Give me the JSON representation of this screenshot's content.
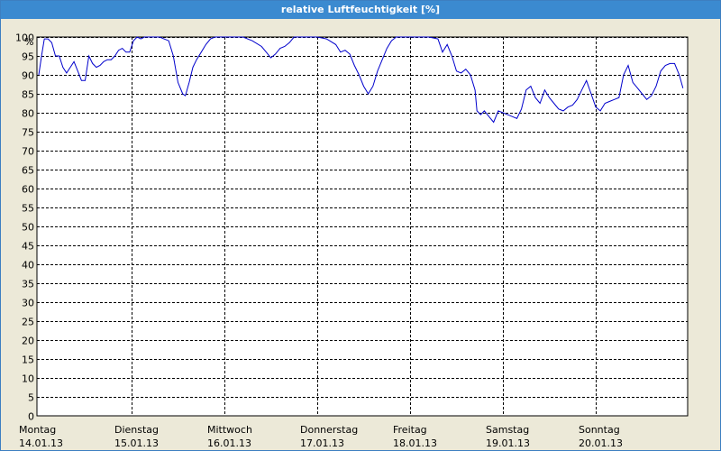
{
  "window": {
    "title": "relative Luftfeuchtigkeit [%]"
  },
  "chart_data": {
    "type": "line",
    "title": "relative Luftfeuchtigkeit [%]",
    "ylabel": "%",
    "xlabel": "",
    "ylim": [
      0,
      100
    ],
    "ytick_step": 5,
    "grid": true,
    "colors": {
      "line": "#0000cc",
      "grid": "#000000",
      "plot_bg": "#ffffff",
      "window_bg": "#ece9d8",
      "title_bg": "#3b8ad0"
    },
    "days": [
      {
        "name": "Montag",
        "date": "14.01.13"
      },
      {
        "name": "Dienstag",
        "date": "15.01.13"
      },
      {
        "name": "Mittwoch",
        "date": "16.01.13"
      },
      {
        "name": "Donnerstag",
        "date": "17.01.13"
      },
      {
        "name": "Freitag",
        "date": "18.01.13"
      },
      {
        "name": "Samstag",
        "date": "19.01.13"
      },
      {
        "name": "Sonntag",
        "date": "20.01.13"
      }
    ],
    "series": [
      {
        "x": [
          0,
          0.03,
          0.06,
          0.1,
          0.14,
          0.18,
          0.22,
          0.26,
          0.3,
          0.34,
          0.38,
          0.42,
          0.46,
          0.5,
          0.54,
          0.58,
          0.62,
          0.66,
          0.7,
          0.74,
          0.78,
          0.82,
          0.86,
          0.9,
          0.94,
          0.98,
          1.02,
          1.06,
          1.1,
          1.14,
          1.2,
          1.3,
          1.4,
          1.45,
          1.5,
          1.55,
          1.58,
          1.62,
          1.66,
          1.7,
          1.75,
          1.8,
          1.85,
          1.9,
          1.95,
          2.0,
          2.1,
          2.2,
          2.3,
          2.4,
          2.45,
          2.5,
          2.55,
          2.6,
          2.65,
          2.7,
          2.75,
          2.8,
          2.85,
          2.9,
          2.95,
          3.0,
          3.1,
          3.2,
          3.25,
          3.3,
          3.35,
          3.4,
          3.45,
          3.5,
          3.55,
          3.6,
          3.65,
          3.7,
          3.75,
          3.8,
          3.85,
          3.9,
          3.95,
          4.0,
          4.1,
          4.2,
          4.3,
          4.35,
          4.4,
          4.45,
          4.5,
          4.55,
          4.6,
          4.65,
          4.7,
          4.72,
          4.76,
          4.8,
          4.85,
          4.9,
          4.95,
          5.0,
          5.05,
          5.1,
          5.15,
          5.2,
          5.25,
          5.3,
          5.35,
          5.4,
          5.45,
          5.5,
          5.55,
          5.6,
          5.65,
          5.7,
          5.75,
          5.8,
          5.85,
          5.9,
          5.95,
          6.0,
          6.05,
          6.1,
          6.15,
          6.2,
          6.25,
          6.3,
          6.35,
          6.4,
          6.45,
          6.5,
          6.55,
          6.6,
          6.65,
          6.7,
          6.75,
          6.8,
          6.85,
          6.9,
          6.94
        ],
        "y": [
          90,
          95,
          99.5,
          99.5,
          98.5,
          95,
          95,
          92,
          90.5,
          92,
          93.5,
          91,
          88.5,
          88.5,
          95,
          93,
          92,
          92.5,
          93.5,
          94,
          94,
          95,
          96.5,
          97,
          96,
          96,
          99,
          100,
          99.5,
          100,
          100,
          100,
          99,
          95,
          88,
          85,
          84.5,
          88,
          92,
          94,
          96,
          98,
          99.5,
          100,
          100,
          100,
          100,
          100,
          99,
          97.5,
          96,
          94.5,
          95.5,
          97,
          97.5,
          98.5,
          100,
          100,
          100,
          100,
          100,
          100,
          99.5,
          98,
          96,
          96.5,
          95.5,
          92.5,
          90,
          87,
          85,
          87,
          91,
          94,
          97,
          99,
          100,
          100,
          100,
          100,
          100,
          100,
          99.5,
          96,
          98,
          95,
          91,
          90.5,
          91.5,
          90,
          86,
          80.5,
          79.5,
          80.5,
          79,
          77.5,
          80.5,
          80,
          79.5,
          79,
          78.5,
          81,
          86,
          87,
          84,
          82.5,
          86,
          84,
          82.5,
          81,
          80.5,
          81.5,
          82,
          83.5,
          86,
          88.5,
          85,
          81.5,
          80.5,
          82.5,
          83,
          83.5,
          84,
          90,
          92.5,
          88,
          86.5,
          85,
          83.5,
          84.5,
          87,
          91,
          92.5,
          93,
          93,
          90,
          86.5
        ]
      }
    ]
  }
}
